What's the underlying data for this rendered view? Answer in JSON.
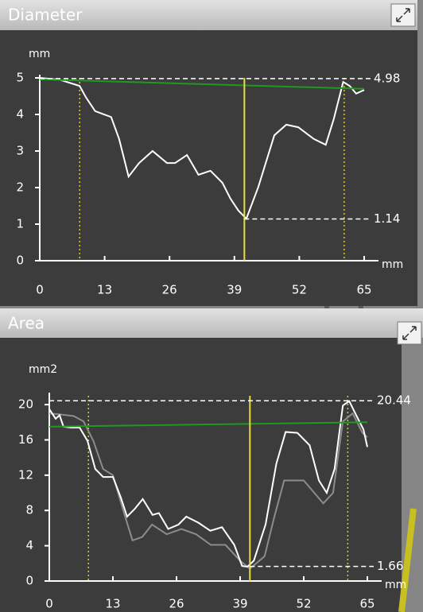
{
  "chart_data": [
    {
      "type": "line",
      "title": "Diameter",
      "y_unit": "mm",
      "x_unit": "mm",
      "xlim": [
        0,
        65
      ],
      "ylim": [
        0,
        5
      ],
      "xticks": [
        0,
        13,
        26,
        39,
        52,
        65
      ],
      "yticks": [
        0,
        1,
        2,
        3,
        4,
        5
      ],
      "series": [
        {
          "color": "#ffffff",
          "x": [
            0,
            4,
            8,
            9.2,
            11.1,
            14.3,
            15.9,
            17.8,
            19.9,
            22.6,
            25.5,
            27.1,
            29.5,
            31.8,
            34.2,
            36.6,
            38.2,
            39.8,
            41.4,
            43.8,
            47,
            49.4,
            51.8,
            54.9,
            57.3,
            58.9,
            60.8,
            62.1,
            63.4,
            65
          ],
          "values": [
            5.0,
            4.95,
            4.78,
            4.48,
            4.09,
            3.93,
            3.33,
            2.3,
            2.67,
            3.0,
            2.67,
            2.67,
            2.89,
            2.35,
            2.46,
            2.13,
            1.7,
            1.37,
            1.15,
            2.02,
            3.43,
            3.72,
            3.65,
            3.33,
            3.17,
            3.87,
            4.89,
            4.78,
            4.57,
            4.67
          ]
        },
        {
          "color": "#1f9a1f",
          "x": [
            0,
            65
          ],
          "values": [
            4.96,
            4.7
          ]
        }
      ],
      "cursor": {
        "x": 41,
        "color": "#e8dc40"
      },
      "limits": [
        8,
        61
      ],
      "annotations": [
        {
          "x_start": 0,
          "value": 4.98
        },
        {
          "x_start": 41,
          "value": 1.14
        }
      ]
    },
    {
      "type": "line",
      "title": "Area",
      "y_unit": "mm2",
      "x_unit": "mm",
      "xlim": [
        0,
        65
      ],
      "ylim": [
        0,
        21
      ],
      "xticks": [
        0,
        13,
        26,
        39,
        52,
        65
      ],
      "yticks": [
        0,
        4,
        8,
        12,
        16,
        20
      ],
      "series": [
        {
          "color": "#8c8c8c",
          "x": [
            0,
            2,
            5,
            7,
            9,
            11,
            13,
            15,
            17,
            19,
            21,
            24,
            27,
            30,
            33,
            36,
            39,
            41,
            44,
            46,
            48,
            52,
            56,
            58,
            60,
            62,
            64,
            65
          ],
          "values": [
            19.0,
            18.9,
            18.7,
            18.1,
            15.9,
            12.7,
            12.0,
            8.2,
            4.6,
            5.0,
            6.4,
            5.3,
            5.9,
            5.3,
            4.1,
            4.1,
            2.3,
            1.4,
            2.8,
            7.3,
            11.4,
            11.4,
            8.8,
            10.0,
            18.1,
            19.0,
            16.8,
            16.3
          ]
        },
        {
          "color": "#ffffff",
          "x": [
            0,
            1.3,
            2.1,
            2.9,
            4.5,
            6.2,
            7.8,
            9.4,
            11,
            13,
            14.6,
            15.9,
            17.5,
            19.1,
            21.1,
            22.4,
            24.3,
            26.4,
            28,
            30.5,
            32.9,
            35.3,
            37.8,
            39.4,
            40.5,
            41.8,
            44.2,
            46.4,
            48.3,
            50.7,
            53.2,
            55.1,
            56.7,
            58.3,
            60,
            61.3,
            62.9,
            64.2,
            65
          ],
          "values": [
            19.5,
            18.4,
            18.8,
            17.5,
            17.4,
            17.4,
            15.9,
            12.7,
            11.8,
            11.8,
            9.5,
            7.3,
            8.2,
            9.3,
            7.5,
            7.7,
            5.9,
            6.4,
            7.3,
            6.6,
            5.7,
            6.1,
            4.1,
            1.7,
            1.62,
            2.3,
            6.4,
            13.3,
            16.9,
            16.8,
            15.4,
            11.4,
            10.0,
            12.7,
            19.9,
            20.4,
            18.6,
            17.2,
            15.2
          ]
        },
        {
          "color": "#1f9a1f",
          "x": [
            0,
            65
          ],
          "values": [
            17.5,
            18.0
          ]
        }
      ],
      "cursor": {
        "x": 41,
        "color": "#e8dc40"
      },
      "limits": [
        8,
        61
      ],
      "annotations": [
        {
          "x_start": 0,
          "value": 20.44
        },
        {
          "x_start": 41,
          "value": 1.66
        }
      ]
    }
  ]
}
